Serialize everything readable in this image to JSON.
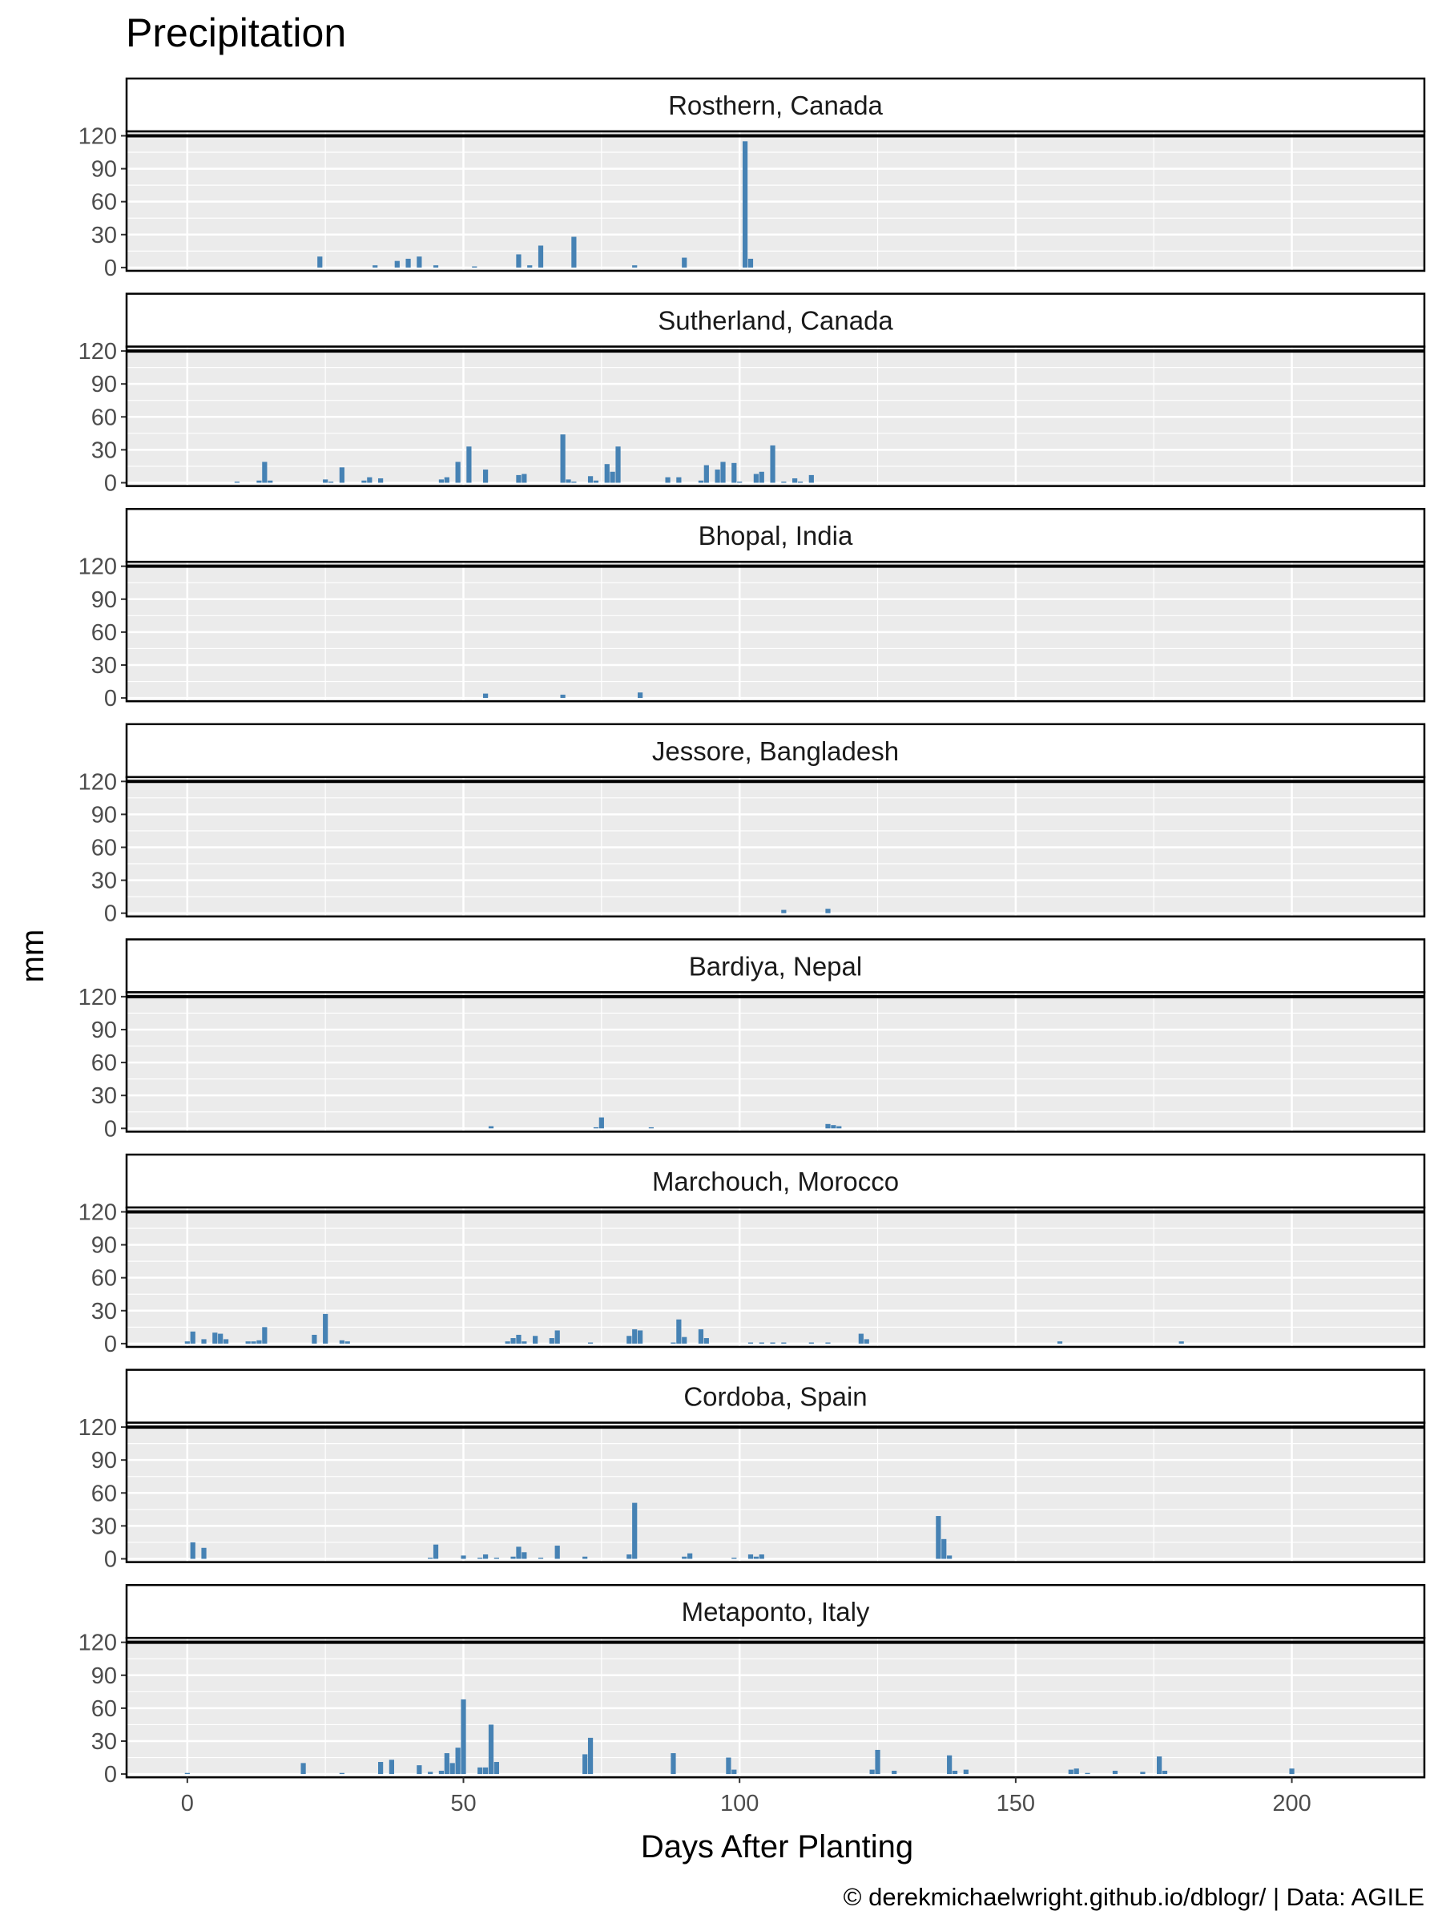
{
  "chart_data": {
    "type": "bar",
    "title": "Precipitation",
    "xlabel": "Days After Planting",
    "ylabel": "mm",
    "caption": "© derekmichaelwright.github.io/dblogr/ | Data: AGILE",
    "xlim": [
      -11,
      224
    ],
    "ylim": [
      -3,
      124
    ],
    "x_ticks": [
      0,
      50,
      100,
      150,
      200
    ],
    "y_ticks": [
      0,
      30,
      60,
      90,
      120
    ],
    "bar_color": "#4682B4",
    "panel_background": "#EBEBEB",
    "grid": true,
    "strip_reference_line": 120,
    "facets": [
      {
        "label": "Rosthern, Canada",
        "x": [
          24,
          34,
          38,
          40,
          42,
          45,
          52,
          60,
          62,
          64,
          70,
          81,
          90,
          101,
          102
        ],
        "values": [
          10,
          2,
          6,
          8,
          10,
          2,
          1,
          12,
          2,
          20,
          28,
          2,
          9,
          115,
          8
        ]
      },
      {
        "label": "Sutherland, Canada",
        "x": [
          9,
          13,
          14,
          15,
          25,
          26,
          28,
          32,
          33,
          35,
          46,
          47,
          49,
          51,
          54,
          60,
          61,
          68,
          69,
          70,
          73,
          74,
          76,
          77,
          78,
          87,
          89,
          93,
          94,
          96,
          97,
          99,
          100,
          103,
          104,
          106,
          108,
          110,
          111,
          113
        ],
        "values": [
          1,
          2,
          19,
          2,
          3,
          1,
          14,
          2,
          5,
          4,
          3,
          5,
          19,
          33,
          12,
          7,
          8,
          44,
          3,
          1,
          6,
          2,
          17,
          10,
          33,
          5,
          5,
          2,
          16,
          12,
          19,
          18,
          1,
          8,
          10,
          34,
          1,
          4,
          1,
          7
        ]
      },
      {
        "label": "Bhopal, India",
        "x": [
          54,
          68,
          82
        ],
        "values": [
          4,
          3,
          5
        ]
      },
      {
        "label": "Jessore, Bangladesh",
        "x": [
          108,
          116
        ],
        "values": [
          3,
          4
        ]
      },
      {
        "label": "Bardiya, Nepal",
        "x": [
          55,
          74,
          75,
          84,
          116,
          117,
          118
        ],
        "values": [
          2,
          1,
          10,
          1,
          4,
          3,
          2
        ]
      },
      {
        "label": "Marchouch, Morocco",
        "x": [
          0,
          1,
          3,
          5,
          6,
          7,
          11,
          12,
          13,
          14,
          23,
          25,
          28,
          29,
          58,
          59,
          60,
          61,
          63,
          66,
          67,
          73,
          80,
          81,
          82,
          88,
          89,
          90,
          93,
          94,
          102,
          104,
          106,
          108,
          113,
          116,
          122,
          123,
          158,
          180
        ],
        "values": [
          2,
          11,
          4,
          10,
          9,
          4,
          2,
          2,
          3,
          15,
          8,
          27,
          3,
          2,
          2,
          5,
          8,
          2,
          7,
          5,
          12,
          1,
          7,
          13,
          12,
          1,
          22,
          6,
          13,
          5,
          1,
          1,
          1,
          1,
          1,
          1,
          9,
          4,
          2,
          2
        ]
      },
      {
        "label": "Cordoba, Spain",
        "x": [
          1,
          3,
          44,
          45,
          50,
          53,
          54,
          56,
          59,
          60,
          61,
          64,
          67,
          72,
          80,
          81,
          90,
          91,
          99,
          102,
          103,
          104,
          136,
          137,
          138
        ],
        "values": [
          15,
          10,
          1,
          13,
          3,
          1,
          4,
          1,
          2,
          11,
          6,
          1,
          12,
          2,
          4,
          51,
          2,
          5,
          1,
          4,
          2,
          4,
          39,
          18,
          3
        ]
      },
      {
        "label": "Metaponto, Italy",
        "x": [
          0,
          21,
          28,
          35,
          37,
          42,
          44,
          46,
          47,
          48,
          49,
          50,
          53,
          54,
          55,
          56,
          72,
          73,
          88,
          98,
          99,
          124,
          125,
          128,
          138,
          139,
          141,
          160,
          161,
          163,
          168,
          173,
          176,
          177,
          200
        ],
        "values": [
          1,
          10,
          1,
          11,
          13,
          8,
          2,
          3,
          19,
          10,
          24,
          68,
          6,
          6,
          45,
          11,
          18,
          33,
          19,
          15,
          4,
          4,
          22,
          3,
          17,
          3,
          4,
          4,
          5,
          1,
          3,
          2,
          16,
          3,
          5
        ]
      }
    ]
  }
}
